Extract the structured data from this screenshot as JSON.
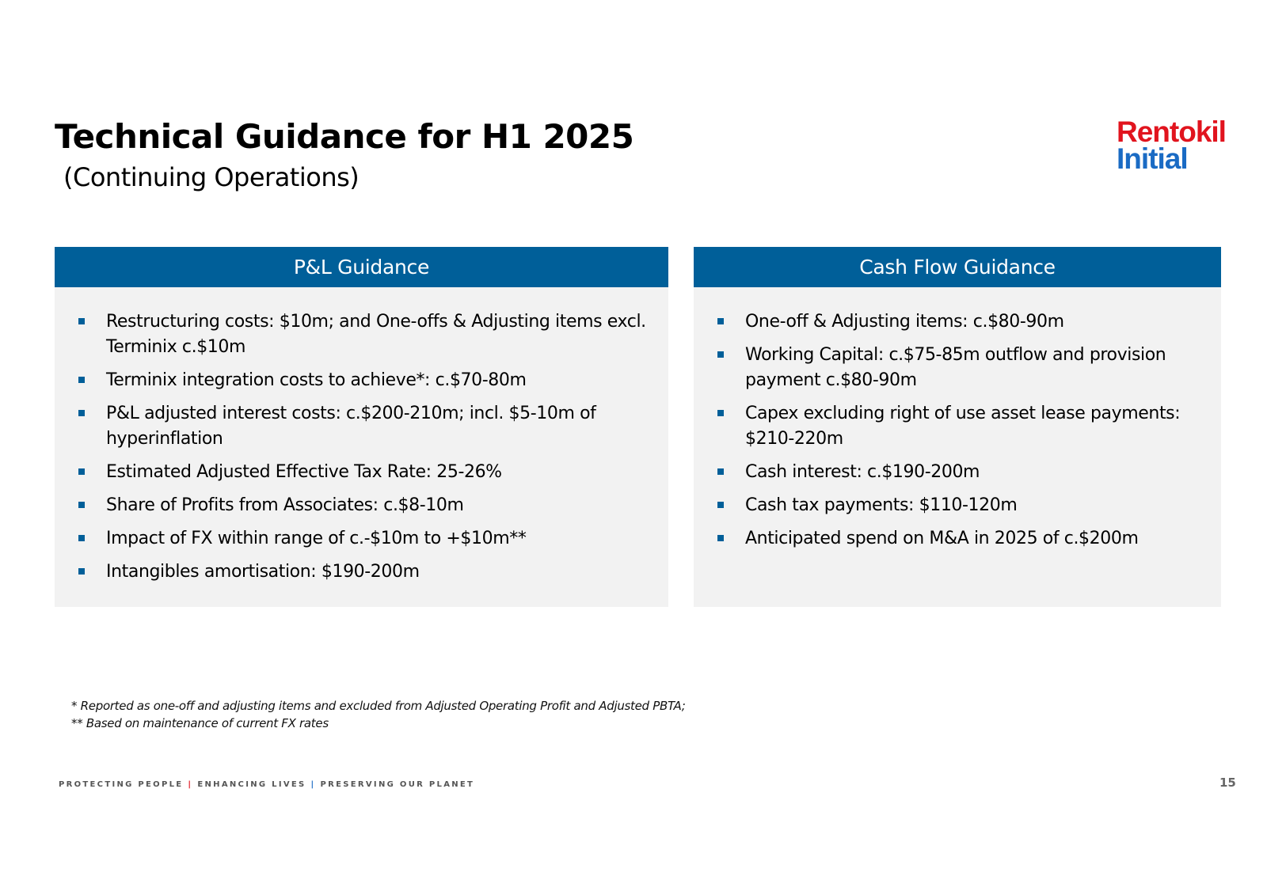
{
  "title": "Technical Guidance for H1 2025",
  "subtitle": "(Continuing Operations)",
  "logo": {
    "line1": "Rentokil",
    "line2": "Initial",
    "color_red": "#e1141e",
    "color_blue": "#1a6bc4"
  },
  "pl_guidance": {
    "header": "P&L Guidance",
    "items": [
      "Restructuring costs: $10m; and One-offs & Adjusting items excl. Terminix c.$10m",
      "Terminix integration costs to achieve*: c.$70-80m",
      "P&L adjusted interest costs: c.$200-210m;  incl. $5-10m of hyperinflation",
      "Estimated Adjusted Effective Tax Rate: 25-26%",
      "Share of Profits from Associates: c.$8-10m",
      "Impact of FX within range of c.-$10m to +$10m**",
      "Intangibles amortisation: $190-200m"
    ]
  },
  "cash_flow_guidance": {
    "header": "Cash Flow Guidance",
    "items": [
      "One-off & Adjusting items: c.$80-90m",
      "Working Capital: c.$75-85m outflow and provision payment c.$80-90m",
      "Capex excluding right of use asset lease payments: $210-220m",
      "Cash interest: c.$190-200m",
      "Cash tax payments: $110-120m",
      "Anticipated spend on M&A in 2025 of c.$200m"
    ]
  },
  "footnotes": [
    "* Reported as one-off and adjusting items and excluded from Adjusted Operating Profit and Adjusted PBTA;",
    "** Based on maintenance of current FX rates"
  ],
  "tagline": {
    "part1": "PROTECTING PEOPLE",
    "sep1": "|",
    "part2": "ENHANCING LIVES",
    "sep2": "|",
    "part3": "PRESERVING OUR PLANET"
  },
  "page_number": "15",
  "colors": {
    "header_bar": "#005f99",
    "panel_bg": "#f2f2f2",
    "bullet": "#005f99"
  }
}
